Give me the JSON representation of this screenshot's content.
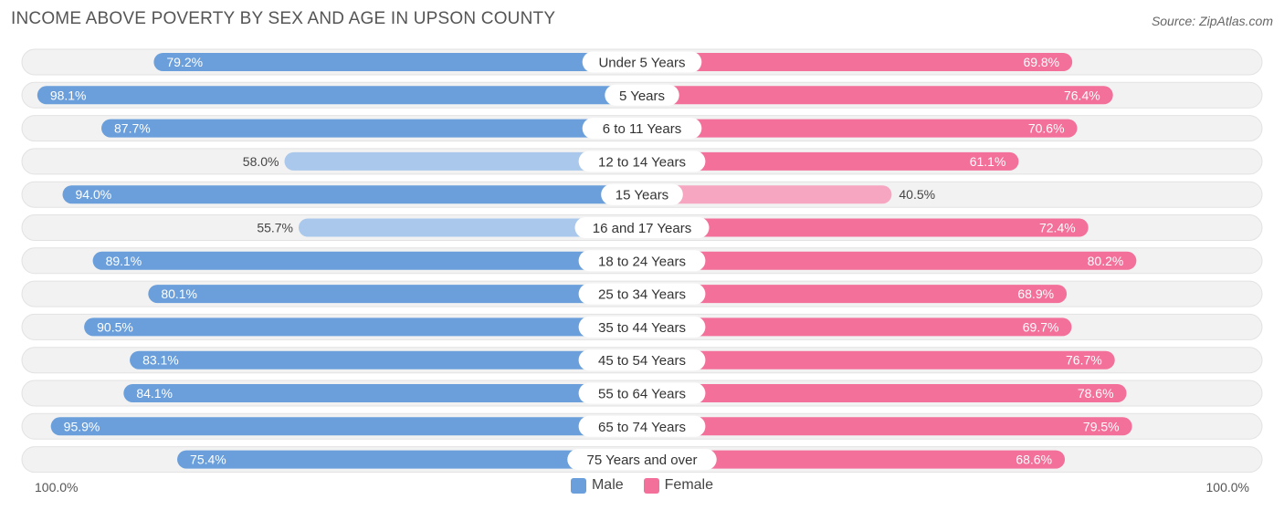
{
  "chart_data": {
    "type": "bar",
    "orientation": "horizontal-diverging",
    "title": "INCOME ABOVE POVERTY BY SEX AND AGE IN UPSON COUNTY",
    "source": "Source: ZipAtlas.com",
    "categories": [
      "Under 5 Years",
      "5 Years",
      "6 to 11 Years",
      "12 to 14 Years",
      "15 Years",
      "16 and 17 Years",
      "18 to 24 Years",
      "25 to 34 Years",
      "35 to 44 Years",
      "45 to 54 Years",
      "55 to 64 Years",
      "65 to 74 Years",
      "75 Years and over"
    ],
    "series": [
      {
        "name": "Male",
        "values": [
          79.2,
          98.1,
          87.7,
          58.0,
          94.0,
          55.7,
          89.1,
          80.1,
          90.5,
          83.1,
          84.1,
          95.9,
          75.4
        ]
      },
      {
        "name": "Female",
        "values": [
          69.8,
          76.4,
          70.6,
          61.1,
          40.5,
          72.4,
          80.2,
          68.9,
          69.7,
          76.7,
          78.6,
          79.5,
          68.6
        ]
      }
    ],
    "value_labels": {
      "male": [
        "79.2%",
        "98.1%",
        "87.7%",
        "58.0%",
        "94.0%",
        "55.7%",
        "89.1%",
        "80.1%",
        "90.5%",
        "83.1%",
        "84.1%",
        "95.9%",
        "75.4%"
      ],
      "female": [
        "69.8%",
        "76.4%",
        "70.6%",
        "61.1%",
        "40.5%",
        "72.4%",
        "80.2%",
        "68.9%",
        "69.7%",
        "76.7%",
        "78.6%",
        "79.5%",
        "68.6%"
      ]
    },
    "axis": {
      "left_label": "100.0%",
      "right_label": "100.0%",
      "range": [
        0,
        100
      ]
    },
    "legend": [
      {
        "name": "Male",
        "color": "#6a9fdb"
      },
      {
        "name": "Female",
        "color": "#f2709a"
      }
    ],
    "colors": {
      "male_strong": "#6a9fdb",
      "male_light": "#a9c8ec",
      "female_strong": "#f2709a",
      "female_light": "#f6a6c0",
      "track": "#eeeeee"
    }
  }
}
